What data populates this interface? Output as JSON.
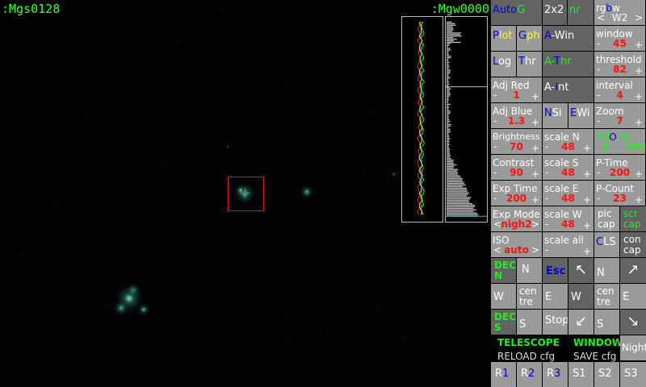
{
  "status": {
    "left": ":Mgs0128",
    "right": ":Mgw0000"
  },
  "buttons": {
    "autog": "AutoG",
    "x2": "2x2",
    "nr": "nr",
    "rgbw": "rgbw",
    "rgbw_val": "W2",
    "window": "window",
    "window_val": "45",
    "plot": "Plot",
    "gph": "Gph",
    "awin": "A-Win",
    "threshold": "threshold",
    "threshold_val": "82",
    "log": "Log",
    "thr": "Thr",
    "athr": "A-Thr",
    "adjred": "Adj Red",
    "adjred_val": "1",
    "aint": "A-Int",
    "interval": "interval",
    "interval_val": "4",
    "adjblue": "Adj Blue",
    "adjblue_val": "1.3",
    "nsi": "NSi",
    "ewi": "EWi",
    "zoom": "Zoom",
    "zoom_val": "7",
    "brightness": "Brightness",
    "brightness_val": "70",
    "scalen": "scale N",
    "scalen_val": "48",
    "photo": "PHOTO",
    "photo_val1": "2",
    "photo_val2": "182",
    "contrast": "Contrast",
    "contrast_val": "90",
    "scales": "scale S",
    "scales_val": "48",
    "ptime": "P-Time",
    "ptime_val": "200",
    "exptime": "Exp Time",
    "exptime_val": "200",
    "scalee": "scale E",
    "scalee_val": "48",
    "pcount": "P-Count",
    "pcount_val": "23",
    "expmode": "Exp Mode",
    "expmode_val": "nigh2",
    "scalew": "scale W",
    "scalew_val": "48",
    "piccap": "pic cap",
    "scrcap": "scr cap",
    "iso": "ISO",
    "iso_val": "auto",
    "scaleall": "scale all",
    "cls": "CLS",
    "concap": "con cap",
    "decn": "DEC N",
    "n": "N",
    "esc": "Esc",
    "w": "W",
    "centre": "cen tre",
    "e": "E",
    "stop": "Stop",
    "decs": "DEC S",
    "s": "S",
    "night": "Night",
    "r1": "R1",
    "r2": "R2",
    "r3": "R3",
    "s1": "S1",
    "s2": "S2",
    "s3": "S3"
  },
  "labels": {
    "telescope": "TELESCOPE",
    "window": "WINDOW",
    "reload": "RELOAD cfg",
    "save": "SAVE cfg"
  },
  "colors": {
    "accent_green": "#22ee22",
    "value_red": "#ff1111",
    "button_gray": "#9a9a9a",
    "button_dark": "#636363"
  }
}
